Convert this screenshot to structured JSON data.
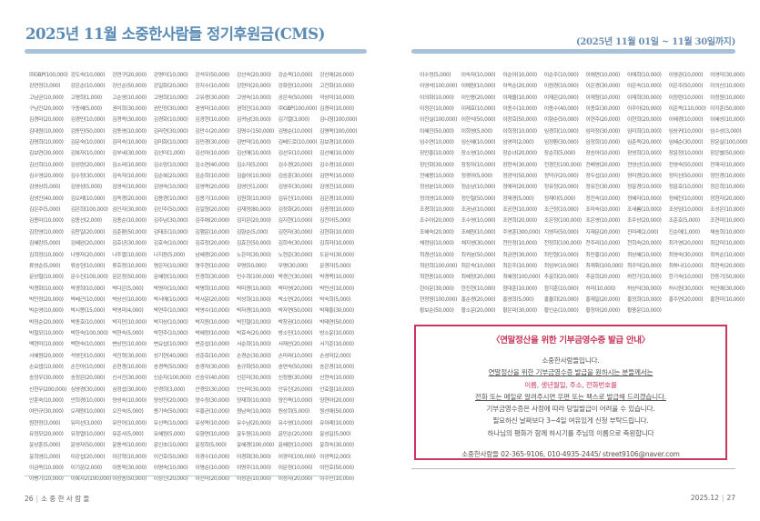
{
  "header": {
    "title": "2025년 11월 소중한사람들 정기후원금(CMS)",
    "period": "(2025년 11월 01일 ~ 11월 30일까지)"
  },
  "colors": {
    "title": "#5a8bb5",
    "bar": "#a9c1d9",
    "notice_accent": "#c9385c"
  },
  "left_donors": [
    [
      "㈜GBP(100,000)",
      "강도숙(10,000)",
      "강연구(20,000)",
      "강명미(10,000)",
      "강석우(50,000)",
      "강선숙(20,000)",
      "강순옥(10,000)",
      "강신애(20,000)"
    ],
    [
      "강연정(3,000)",
      "강은순(10,000)",
      "강인순(50,000)",
      "강일화(20,000)",
      "강지수(10,000)",
      "강현미(20,000)",
      "강화란(10,000)",
      "고건화(10,000)"
    ],
    [
      "고남균(10,000)",
      "고명희(1,000)",
      "고순영(10,000)",
      "고명희(10,000)",
      "고유경(30,000)",
      "고영숙(10,000)",
      "공은숙(50,000)",
      "곽상미(10,000)"
    ],
    [
      "구남진(20,000)",
      "구종혜(5,000)",
      "권미희(30,000)",
      "권민정(30,000)",
      "권영미(10,000)",
      "권혁진(10,000)",
      "㈜GBP(100,000)",
      "김경리(10,000)"
    ],
    [
      "김경미(20,000)",
      "김경민(10,000)",
      "김경옥(30,000)",
      "김경화(10,000)",
      "김광현(10,000)",
      "김귀남(30,000)",
      "김기열(3,000)",
      "김나형(100,000)"
    ],
    [
      "김대원(10,000)",
      "김동민(50,000)",
      "김동영(10,000)",
      "김라현(30,000)",
      "김만수(20,000)",
      "김명수(150,000)",
      "김명순(10,000)",
      "김명옥(100,000)"
    ],
    [
      "김명희(10,000)",
      "김문숙(10,000)",
      "김미숙(10,000)",
      "김미화(10,000)",
      "김민경(30,000)",
      "김번덕(10,000)",
      "김베드로(10,000)",
      "김보경(10,000)"
    ],
    [
      "김보연(30,000)",
      "김복자(10,000)",
      "김부네(30,000)",
      "김선미(1,000)",
      "김선아(10,000)",
      "김선애(10,000)",
      "김선우(10,000)",
      "김선혜(10,000)"
    ],
    [
      "김선희(10,000)",
      "김성란(20,000)",
      "김소라(10,000)",
      "김소망(10,000)",
      "김소연(40,000)",
      "김소자(5,000)",
      "김수경(20,000)",
      "김수경(10,000)"
    ],
    [
      "김수영(20,000)",
      "김수정(30,000)",
      "김숙자(10,000)",
      "김순복(20,000)",
      "김순희(10,000)",
      "김슬아(10,000)",
      "김승훈(30,000)",
      "김연옥(10,000)"
    ],
    [
      "김영상(5,000)",
      "김영성(5,000)",
      "김영숙(10,000)",
      "김영숙(10,000)",
      "김영옥(20,000)",
      "김영인(1,000)",
      "김영주(30,000)",
      "김영진(10,000)"
    ],
    [
      "김영진(40,000)",
      "김오례(10,000)",
      "김옥경(20,000)",
      "김용경(10,000)",
      "김용기(10,000)",
      "김원희(10,000)",
      "김유진(10,000)",
      "김은경(10,000)"
    ],
    [
      "김은주(5,000)",
      "김은희(100,000)",
      "김인자(30,000)",
      "김인주(50,000)",
      "김일형(20,000)",
      "김재정(80,000)",
      "김정화(20,000)",
      "김종혁(10,000)"
    ],
    [
      "김종미(10,000)",
      "김종선(2,000)",
      "김종순(10,000)",
      "김주남(30,000)",
      "김주애(20,000)",
      "김지은(20,000)",
      "김지현(10,000)",
      "김진아(5,000)"
    ],
    [
      "김창영(10,000)",
      "김찬일(20,000)",
      "김춘환(50,000)",
      "김태조(10,000)",
      "김행운(10,000)",
      "김향순(5,000)",
      "김현자(30,000)",
      "김현화(10,000)"
    ],
    [
      "김혜란(5,000)",
      "김혜완(20,000)",
      "김호년(30,000)",
      "김호숙(10,000)",
      "김호정(20,000)",
      "김효진(50,000)",
      "김희숙(30,000)",
      "김희자(10,000)"
    ],
    [
      "김희정(10,000)",
      "나명자(20,000)",
      "나주열(10,000)",
      "나지음(5,000)",
      "남혜경(20,000)",
      "노은미(30,000)",
      "노현준(30,000)",
      "도문식(30,000)"
    ],
    [
      "류영순(5,000)",
      "류승헌(10,000)",
      "류호정(10,000)",
      "명은자(10,000)",
      "명주현(10,000)",
      "무명(50,000)",
      "무명(30,000)",
      "문경자(5,000)"
    ],
    [
      "문상철(10,000)",
      "문수진(100,000)",
      "문은정(50,000)",
      "문혜정(10,000)",
      "민경희(30,000)",
      "민수희(100,000)",
      "박경근(30,000)",
      "박경목(10,000)"
    ],
    [
      "박경화(10,000)",
      "박경희(10,000)",
      "박다은(5,000)",
      "박명자(10,000)",
      "박명희(10,000)",
      "박미경(10,000)",
      "박미영(20,000)",
      "박민선(10,000)"
    ],
    [
      "박민정(20,000)",
      "박베근(10,000)",
      "박상신(10,000)",
      "박서애(10,000)",
      "박서윤(20,000)",
      "박성희(10,000)",
      "박소연(20,000)",
      "박숙희(5,000)"
    ],
    [
      "박순영(10,000)",
      "박시몽(15,000)",
      "박영미(4,000)",
      "박연주(10,000)",
      "박영수(10,000)",
      "박자경(10,000)",
      "박자연(50,000)",
      "박재홍(30,000)"
    ],
    [
      "박정순(20,000)",
      "박종호(10,000)",
      "박지민(10,000)",
      "박지상(10,000)",
      "박지원(10,000)",
      "박진철(10,000)",
      "박창권(10,000)",
      "박태연(50,000)"
    ],
    [
      "박철모(10,000)",
      "박한숙(100,000)",
      "박현숙(5,000)",
      "박현주(10,000)",
      "박혜정(10,000)",
      "박효숙(20,000)",
      "방소민(10,000)",
      "방소윤(10,000)"
    ],
    [
      "백현미(10,000)",
      "백현숙(10,000)",
      "변상민(10,000)",
      "변요섭(10,000)",
      "변준섭(10,000)",
      "서순희(10,000)",
      "서재산(20,000)",
      "서기준(10,000)"
    ],
    [
      "서혜원(20,000)",
      "석영진(10,000)",
      "석진혁(30,000)",
      "성기현(40,000)",
      "성준호(10,000)",
      "손경순(30,000)",
      "손미라(10,000)",
      "손성미(2,000)"
    ],
    [
      "손요셉(10,000)",
      "손진아(10,000)",
      "손현경(10,000)",
      "송경옥(50,000)",
      "송경자(30,000)",
      "송규화(50,000)",
      "송연숙(50,000)",
      "송은경(10,000)"
    ],
    [
      "송정우(30,000)",
      "송정은(20,000)",
      "신서진(30,000)",
      "신순자(100,000)",
      "신승우(40,000)",
      "신은미(30,000)",
      "신정용(30,000)",
      "신현숙(10,000)"
    ],
    [
      "신현우(200,000)",
      "심영경(30,000)",
      "심정섭(30,000)",
      "안경희(3,000)",
      "안경모(30,000)",
      "안신미(30,000)",
      "안유진(20,000)",
      "안효철(10,000)"
    ],
    [
      "안훈숙(10,000)",
      "안희경(10,000)",
      "양성숙(10,000)",
      "양성진(20,000)",
      "양수정(30,000)",
      "양재희(10,000)",
      "양진옥(10,000)",
      "양현아(20,000)"
    ],
    [
      "여민규(30,000)",
      "오재원(10,000)",
      "오진숙(5,000)",
      "용기숙(50,000)",
      "우홍균(10,000)",
      "원남숙(10,000)",
      "원상희(5,000)",
      "원선애(50,000)"
    ],
    [
      "원현정(3,000)",
      "유미선(3,000)",
      "유민아(10,000)",
      "유선옥(10,000)",
      "유성옥(10,000)",
      "유수남(20,000)",
      "유수영(10,000)",
      "유이례(10,000)"
    ],
    [
      "유정모(20,000)",
      "유정열(10,000)",
      "유준서(5,000)",
      "유혜원(5,000)",
      "유향연(10,000)",
      "윤두원(10,000)",
      "윤민순(20,000)",
      "윤성길(5,000)"
    ],
    [
      "윤상훈(5,000)",
      "윤영자(50,000)",
      "윤용석(10,000)",
      "윤인초(10,000)",
      "윤정희(5,000)",
      "윤혜경(100,000)",
      "윤혜란(10,000)",
      "윤희숙(30,000)"
    ],
    [
      "윤희영(1,000)",
      "이강섭(20,000)",
      "이강혁(10,000)",
      "이건호(50,000)",
      "이경수(10,000)",
      "이경화(30,000)",
      "이광미(100,000)",
      "이광옥(2,000)"
    ],
    [
      "이금옥(10,000)",
      "이기운(2,000)",
      "이동욱(30,000)",
      "이명숙(10,000)",
      "이명순(10,000)",
      "이명주(10,000)",
      "이문정(10,000)",
      "이민호(50,000)"
    ],
    [
      "이병기(10,000)",
      "이복자2(100,000)",
      "이상종(50,000)",
      "이상진(20,000)",
      "이선미(20,000)",
      "이성순(10,000)",
      "이성자(20,000)",
      "이수민(10,000)"
    ]
  ],
  "right_donors": [
    [
      "이수정(5,000)",
      "이숙자(10,000)",
      "이순아(10,000)",
      "이순주(10,000)",
      "이애연(10,000)",
      "이애희(10,000)",
      "이영관(10,000)",
      "이영미(30,000)"
    ],
    [
      "이영석(100,000)",
      "이예원(10,000)",
      "이옥순(20,000)",
      "이원경(10,000)",
      "이은경(30,000)",
      "이은숙(10,000)",
      "이은주(50,000)",
      "이의신(10,000)"
    ],
    [
      "이의화(10,000)",
      "이인용(20,000)",
      "이재율(10,000)",
      "이재은(20,000)",
      "이재형(10,000)",
      "이재희(30,000)",
      "이정란(10,000)",
      "이정원(10,000)"
    ],
    [
      "이정은(10,000)",
      "이제호(10,000)",
      "이종수(10,000)",
      "이종수(40,000)",
      "이종호(30,000)",
      "이주아(20,000)",
      "이준옥(110,000)",
      "이지훈(50,000)"
    ],
    [
      "이진실(100,000)",
      "이한익(50,000)",
      "이창호(50,000)",
      "이향순(50,000)",
      "이현주(20,000)",
      "이현희(20,000)",
      "이혜경(10,000)",
      "이혜성(10,000)"
    ],
    [
      "이혜진(50,000)",
      "이희영(5,000)",
      "이희정(10,000)",
      "임경희(10,000)",
      "임미정(30,000)",
      "임미희(10,000)",
      "임상귀(10,000)",
      "임수성(3,000)"
    ],
    [
      "임수연(10,000)",
      "임신혜(10,000)",
      "임영미(2,000)",
      "임정환(30,000)",
      "임정희(10,000)",
      "임춘옥(20,000)",
      "임혜순(30,000)",
      "장문실(100,000)"
    ],
    [
      "장민홍(10,000)",
      "장소영(10,000)",
      "장순녀(20,000)",
      "장순희(5,000)",
      "장승아(10,000)",
      "장영희(10,000)",
      "장윤정(10,000)",
      "장은별(50,000)"
    ],
    [
      "장인화(30,000)",
      "장정자(10,000)",
      "장현숙(30,000)",
      "전경진(100,000)",
      "전배영(20,000)",
      "전영선(10,000)",
      "전영숙(50,000)",
      "전재국(10,000)"
    ],
    [
      "전혜봉(10,000)",
      "정경아(5,000)",
      "정광익(50,000)",
      "정덕규(20,000)",
      "정두섭(10,000)",
      "정미경(20,000)",
      "정미선(50,000)",
      "정민경(10,000)"
    ],
    [
      "정성분(10,000)",
      "정순남(10,000)",
      "정애리(20,000)",
      "정유정(20,000)",
      "정유진(30,000)",
      "정윤경(10,000)",
      "정윤호(10,000)",
      "정은희(10,000)"
    ],
    [
      "정의영(10,000)",
      "정인철(50,000)",
      "정재경(5,000)",
      "정재이(5,000)",
      "정진숙(10,000)",
      "정혜자(10,000)",
      "정혜진(10,000)",
      "정현자(20,000)"
    ],
    [
      "조경희(10,000)",
      "조공남(10,000)",
      "조공현(10,000)",
      "조근정(10,000)",
      "조미숙(10,000)",
      "조새롬(10,000)",
      "조성임(10,000)",
      "조성은(10,000)"
    ],
    [
      "조수아(20,000)",
      "조수영(10,000)",
      "조연희(20,000)",
      "조은정(100,000)",
      "조은영(10,000)",
      "조주상(20,000)",
      "조춘호(5,000)",
      "조현미(10,000)"
    ],
    [
      "조혜숙(20,000)",
      "조혜원(10,000)",
      "주영훈(300,000)",
      "지영자(50,000)",
      "지재문(20,000)",
      "진미례(2,000)",
      "진순애(1,000)",
      "채송희(10,000)"
    ],
    [
      "채정임(10,000)",
      "채지영(30,000)",
      "천민정(10,000)",
      "천정희(100,000)",
      "천주리(10,000)",
      "천희숙(20,000)",
      "최가영(20,000)",
      "최갑미(10,000)"
    ],
    [
      "최경선(10,000)",
      "최귀분(50,000)",
      "최금연(30,000)",
      "최민형(10,000)",
      "최민홍(10,000)",
      "최상혜(10,000)",
      "최영숙(30,000)",
      "최옥순(10,000)"
    ],
    [
      "최완희(100,000)",
      "최은숙(10,000)",
      "최은주(10,000)",
      "최임부(10,000)",
      "최재휘(100,000)",
      "최주덕(20,000)",
      "최하나(10,000)",
      "최현숙(20,000)"
    ],
    [
      "최현종(10,000)",
      "최혜정(20,000)",
      "최혜정(100,000)",
      "추윤희(20,000)",
      "추윤희(20,000)",
      "하천기(10,000)",
      "한기숙(10,000)",
      "한동기(50,000)"
    ],
    [
      "한이운(30,000)",
      "한진현(10,000)",
      "함대훈(10,000)",
      "함지훈(10,000)",
      "허미(10,000)",
      "허상익(30,000)",
      "허시원(30,000)",
      "허인애(30,000)"
    ],
    [
      "현정원(100,000)",
      "홍순경(20,000)",
      "홍영희(5,000)",
      "홍율희(20,000)",
      "홍재일(20,000)",
      "홍정희(10,000)",
      "홍주연(20,000)",
      "홍현미(10,000)"
    ],
    [
      "황보순(50,000)",
      "황소운(20,000)",
      "황은미(30,000)",
      "황인순(10,000)",
      "황정아(20,000)",
      "황중운(10,000)"
    ]
  ],
  "notice": {
    "title": "〈연말정산을 위한 기부금영수증 발급 안내〉",
    "lines": [
      "소중한사람들입니다.",
      "연말정산을 위한 기부금영수증 발급을 원하시는 분들께서는",
      "이름, 생년월일, 주소, 전화번호를",
      "전화 또는 메일로 알려주시면 우편 또는 팩스로 발급해 드리겠습니다.",
      "기부금영수증은 사정에 따라 당일발급이 어려울 수 있습니다.",
      "필요하신 날짜보다 3~4일 여유있게 신청 부탁드립니다.",
      "하나님의 평화가 함께 하시기를 주님의 이름으로 축원합니다"
    ],
    "contact": "소중한사람들 02-365-9106, 010-4935-2445/ street9106@naver.com"
  },
  "footer": {
    "left_page": "26",
    "left_label": "소 중 한 사 람 들",
    "right_date": "2025.12",
    "right_page": "27",
    "separator": "|"
  }
}
